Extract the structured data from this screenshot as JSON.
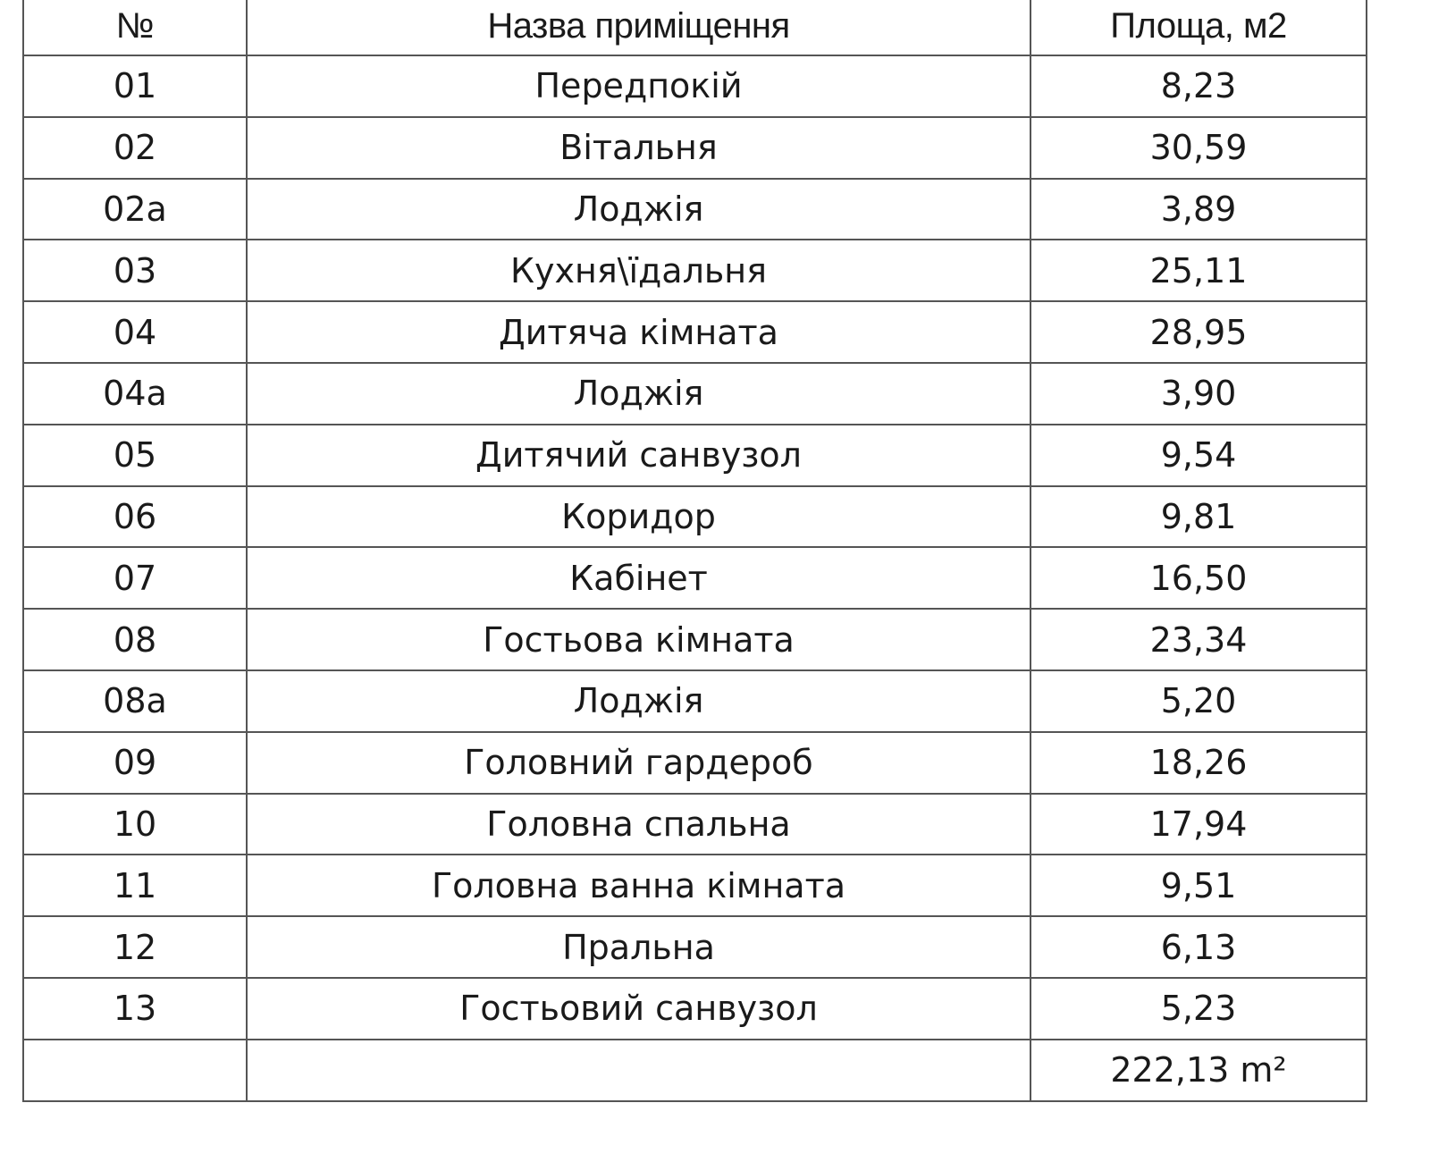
{
  "headers": {
    "number": "№",
    "name": "Назва приміщення",
    "area": "Площа, м2"
  },
  "rows": [
    {
      "number": "01",
      "name": "Передпокій",
      "area": "8,23"
    },
    {
      "number": "02",
      "name": "Вітальня",
      "area": "30,59"
    },
    {
      "number": "02а",
      "name": "Лоджія",
      "area": "3,89"
    },
    {
      "number": "03",
      "name": "Кухня\\їдальня",
      "area": "25,11"
    },
    {
      "number": "04",
      "name": "Дитяча кімната",
      "area": "28,95"
    },
    {
      "number": "04а",
      "name": "Лоджія",
      "area": "3,90"
    },
    {
      "number": "05",
      "name": "Дитячий санвузол",
      "area": "9,54"
    },
    {
      "number": "06",
      "name": "Коридор",
      "area": "9,81"
    },
    {
      "number": "07",
      "name": "Кабінет",
      "area": "16,50"
    },
    {
      "number": "08",
      "name": "Гостьова кімната",
      "area": "23,34"
    },
    {
      "number": "08а",
      "name": "Лоджія",
      "area": "5,20"
    },
    {
      "number": "09",
      "name": "Головний гардероб",
      "area": "18,26"
    },
    {
      "number": "10",
      "name": "Головна спальна",
      "area": "17,94"
    },
    {
      "number": "11",
      "name": "Головна ванна кімната",
      "area": "9,51"
    },
    {
      "number": "12",
      "name": "Пральна",
      "area": "6,13"
    },
    {
      "number": "13",
      "name": "Гостьовий санвузол",
      "area": "5,23"
    }
  ],
  "total": {
    "area": "222,13 m²"
  }
}
